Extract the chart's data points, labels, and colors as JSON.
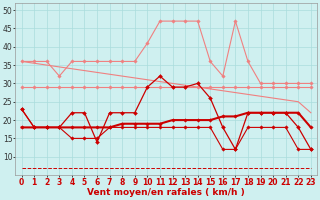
{
  "x": [
    0,
    1,
    2,
    3,
    4,
    5,
    6,
    7,
    8,
    9,
    10,
    11,
    12,
    13,
    14,
    15,
    16,
    17,
    18,
    19,
    20,
    21,
    22,
    23
  ],
  "series": [
    {
      "name": "rafales_high",
      "color": "#f08080",
      "lw": 0.8,
      "marker": "D",
      "markersize": 1.8,
      "y": [
        36,
        36,
        36,
        32,
        36,
        36,
        36,
        36,
        36,
        36,
        41,
        47,
        47,
        47,
        47,
        36,
        32,
        47,
        36,
        30,
        30,
        30,
        30,
        30
      ]
    },
    {
      "name": "rafales_trend",
      "color": "#f08080",
      "lw": 0.8,
      "marker": null,
      "y": [
        36,
        35.5,
        35,
        34.5,
        34,
        33.5,
        33,
        32.5,
        32,
        31.5,
        31,
        30.5,
        30,
        29.5,
        29,
        28.5,
        28,
        27.5,
        27,
        26.5,
        26,
        25.5,
        25,
        22
      ]
    },
    {
      "name": "vent_moyen_high",
      "color": "#f08080",
      "lw": 0.8,
      "marker": "D",
      "markersize": 1.8,
      "y": [
        29,
        29,
        29,
        29,
        29,
        29,
        29,
        29,
        29,
        29,
        29,
        29,
        29,
        29,
        29,
        29,
        29,
        29,
        29,
        29,
        29,
        29,
        29,
        29
      ]
    },
    {
      "name": "main_rafales",
      "color": "#cc0000",
      "lw": 0.9,
      "marker": "D",
      "markersize": 2.0,
      "y": [
        23,
        18,
        18,
        18,
        22,
        22,
        14,
        22,
        22,
        22,
        29,
        32,
        29,
        29,
        30,
        26,
        18,
        12,
        22,
        22,
        22,
        22,
        18,
        12
      ]
    },
    {
      "name": "vent_moyen_main",
      "color": "#cc0000",
      "lw": 1.5,
      "marker": "D",
      "markersize": 1.8,
      "y": [
        18,
        18,
        18,
        18,
        18,
        18,
        18,
        18,
        19,
        19,
        19,
        19,
        20,
        20,
        20,
        20,
        21,
        21,
        22,
        22,
        22,
        22,
        22,
        18
      ]
    },
    {
      "name": "vent_moyen_low",
      "color": "#cc0000",
      "lw": 0.8,
      "marker": "D",
      "markersize": 1.8,
      "y": [
        23,
        18,
        18,
        18,
        15,
        15,
        15,
        18,
        18,
        18,
        18,
        18,
        18,
        18,
        18,
        18,
        12,
        12,
        18,
        18,
        18,
        18,
        12,
        12
      ]
    },
    {
      "name": "bottom_dashes",
      "color": "#cc0000",
      "lw": 0.7,
      "marker": null,
      "linestyle": "--",
      "y": [
        7,
        7,
        7,
        7,
        7,
        7,
        7,
        7,
        7,
        7,
        7,
        7,
        7,
        7,
        7,
        7,
        7,
        7,
        7,
        7,
        7,
        7,
        7,
        7
      ]
    }
  ],
  "xlabel": "Vent moyen/en rafales ( km/h )",
  "xlim": [
    -0.5,
    23.5
  ],
  "ylim": [
    5,
    52
  ],
  "yticks": [
    10,
    15,
    20,
    25,
    30,
    35,
    40,
    45,
    50
  ],
  "xticks": [
    0,
    1,
    2,
    3,
    4,
    5,
    6,
    7,
    8,
    9,
    10,
    11,
    12,
    13,
    14,
    15,
    16,
    17,
    18,
    19,
    20,
    21,
    22,
    23
  ],
  "background_color": "#cff0f0",
  "grid_color": "#aadddd",
  "xlabel_fontsize": 6.5,
  "tick_fontsize": 5.5
}
